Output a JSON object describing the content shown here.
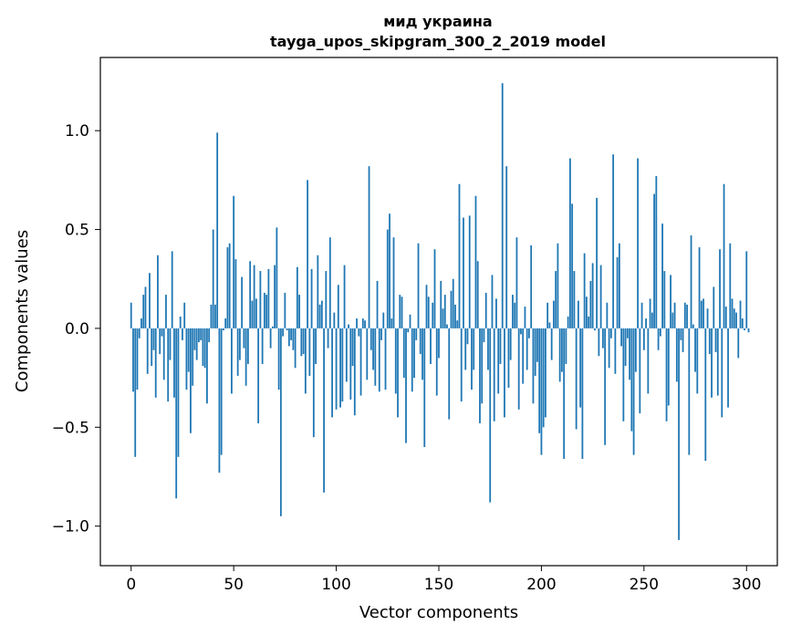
{
  "chart_data": {
    "type": "bar",
    "title": "мид украина",
    "subtitle": "tayga_upos_skipgram_300_2_2019 model",
    "xlabel": "Vector components",
    "ylabel": "Components values",
    "xlim": [
      -15,
      315
    ],
    "ylim": [
      -1.2,
      1.37
    ],
    "x_ticks": [
      0,
      50,
      100,
      150,
      200,
      250,
      300
    ],
    "x_tick_labels": [
      "0",
      "50",
      "100",
      "150",
      "200",
      "250",
      "300"
    ],
    "y_ticks": [
      -1.0,
      -0.5,
      0.0,
      0.5,
      1.0
    ],
    "y_tick_labels": [
      "−1.0",
      "−0.5",
      "0.0",
      "0.5",
      "1.0"
    ],
    "bar_color": "#1f77b4",
    "series": [
      {
        "name": "components",
        "values": [
          0.13,
          -0.32,
          -0.65,
          -0.31,
          -0.05,
          0.05,
          0.17,
          0.21,
          -0.23,
          0.28,
          -0.19,
          -0.11,
          -0.35,
          0.37,
          -0.13,
          -0.04,
          -0.26,
          0.17,
          -0.37,
          -0.16,
          0.39,
          -0.35,
          -0.86,
          -0.65,
          0.06,
          -0.06,
          0.13,
          -0.31,
          -0.22,
          -0.53,
          -0.29,
          -0.11,
          -0.16,
          -0.07,
          -0.06,
          -0.19,
          -0.2,
          -0.38,
          -0.07,
          0.12,
          0.5,
          0.12,
          0.99,
          -0.73,
          -0.64,
          -0.01,
          0.05,
          0.41,
          0.43,
          -0.33,
          0.67,
          0.35,
          -0.24,
          -0.16,
          0.26,
          -0.1,
          -0.29,
          -0.18,
          0.34,
          0.14,
          0.32,
          0.15,
          -0.48,
          0.29,
          -0.18,
          0.18,
          0.17,
          0.3,
          -0.1,
          0.01,
          0.32,
          0.51,
          -0.31,
          -0.95,
          -0.04,
          0.18,
          -0.01,
          -0.09,
          -0.06,
          -0.11,
          -0.2,
          0.31,
          0.17,
          -0.14,
          -0.13,
          -0.33,
          0.75,
          -0.24,
          0.3,
          -0.55,
          -0.18,
          0.37,
          0.12,
          0.14,
          -0.83,
          0.29,
          -0.1,
          0.46,
          -0.45,
          0.08,
          -0.41,
          0.22,
          -0.4,
          -0.37,
          0.32,
          -0.27,
          0.02,
          -0.36,
          -0.19,
          -0.44,
          0.05,
          -0.04,
          -0.34,
          0.05,
          0.04,
          -0.26,
          0.82,
          -0.11,
          -0.21,
          -0.29,
          0.24,
          -0.32,
          -0.06,
          0.08,
          -0.31,
          0.5,
          0.58,
          0.05,
          0.46,
          -0.33,
          -0.45,
          0.17,
          0.16,
          -0.25,
          -0.58,
          -0.02,
          0.07,
          -0.32,
          -0.25,
          -0.06,
          0.43,
          -0.13,
          -0.26,
          -0.6,
          0.22,
          0.16,
          -0.18,
          0.13,
          0.4,
          -0.34,
          -0.15,
          0.24,
          0.1,
          0.17,
          0.02,
          -0.46,
          0.19,
          0.25,
          0.12,
          0.04,
          0.73,
          -0.37,
          0.56,
          -0.21,
          -0.08,
          0.57,
          -0.31,
          -0.21,
          0.67,
          0.34,
          -0.48,
          -0.38,
          -0.07,
          0.18,
          -0.21,
          -0.88,
          0.27,
          -0.47,
          0.15,
          -0.33,
          -0.18,
          1.24,
          -0.45,
          0.82,
          -0.3,
          -0.16,
          0.17,
          0.13,
          0.46,
          -0.41,
          -0.03,
          -0.28,
          0.11,
          -0.21,
          -0.05,
          0.42,
          -0.38,
          -0.24,
          -0.17,
          -0.53,
          -0.64,
          -0.5,
          -0.45,
          0.13,
          0.03,
          -0.16,
          0.14,
          0.29,
          0.43,
          -0.27,
          -0.22,
          -0.66,
          -0.18,
          0.06,
          0.86,
          0.63,
          0.29,
          -0.51,
          0.14,
          -0.4,
          -0.66,
          0.38,
          0.16,
          0.06,
          0.24,
          0.33,
          -0.01,
          0.66,
          -0.14,
          0.32,
          -0.1,
          -0.59,
          0.13,
          -0.2,
          -0.05,
          0.88,
          -0.23,
          0.36,
          0.43,
          -0.09,
          -0.47,
          -0.19,
          -0.05,
          -0.26,
          -0.52,
          -0.64,
          -0.22,
          0.86,
          -0.43,
          0.13,
          -0.11,
          0.05,
          -0.33,
          0.15,
          0.08,
          0.68,
          0.77,
          -0.11,
          -0.04,
          0.53,
          0.29,
          -0.47,
          -0.39,
          0.27,
          0.08,
          0.13,
          -0.27,
          -1.07,
          -0.06,
          -0.12,
          0.13,
          0.12,
          -0.64,
          0.47,
          0.02,
          -0.22,
          -0.33,
          0.41,
          0.14,
          0.15,
          -0.67,
          0.1,
          -0.13,
          -0.35,
          0.21,
          -0.12,
          -0.34,
          0.4,
          -0.45,
          0.73,
          0.11,
          -0.4,
          0.43,
          0.15,
          0.1,
          0.08,
          -0.15,
          0.14,
          0.05,
          -0.01,
          0.39,
          -0.02
        ]
      }
    ]
  }
}
